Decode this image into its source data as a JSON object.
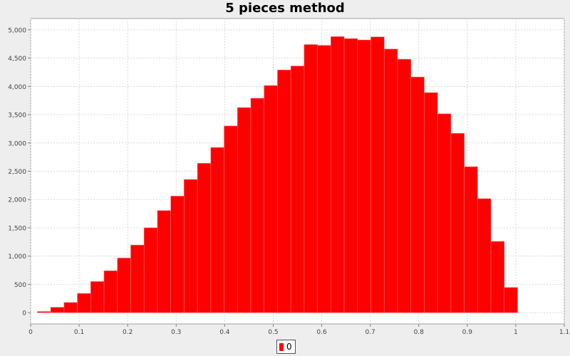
{
  "chart_data": {
    "type": "bar",
    "title": "5 pieces method",
    "xlabel": "",
    "ylabel": "",
    "xlim": [
      0,
      1.1
    ],
    "ylim": [
      -200,
      5200
    ],
    "x_ticks": [
      "0",
      "0.1",
      "0.2",
      "0.3",
      "0.4",
      "0.5",
      "0.6",
      "0.7",
      "0.8",
      "0.9",
      "1",
      "1.1"
    ],
    "x_tick_values": [
      0,
      0.1,
      0.2,
      0.3,
      0.4,
      0.5,
      0.6,
      0.7,
      0.8,
      0.9,
      1.0,
      1.1
    ],
    "y_ticks": [
      "0",
      "500",
      "1,000",
      "1,500",
      "2,000",
      "2,500",
      "3,000",
      "3,500",
      "4,000",
      "4,500",
      "5,000"
    ],
    "y_tick_values": [
      0,
      500,
      1000,
      1500,
      2000,
      2500,
      3000,
      3500,
      4000,
      4500,
      5000
    ],
    "grid": true,
    "legend_position": "bottom",
    "bar_color": "#ff0000",
    "series": [
      {
        "name": "0",
        "color": "#ff0000",
        "bins": [
          {
            "x0": 0.0138,
            "x1": 0.0413,
            "value": 20
          },
          {
            "x0": 0.0413,
            "x1": 0.0688,
            "value": 95
          },
          {
            "x0": 0.0688,
            "x1": 0.0963,
            "value": 180
          },
          {
            "x0": 0.0963,
            "x1": 0.1238,
            "value": 340
          },
          {
            "x0": 0.1238,
            "x1": 0.1513,
            "value": 550
          },
          {
            "x0": 0.1513,
            "x1": 0.1788,
            "value": 740
          },
          {
            "x0": 0.1788,
            "x1": 0.2063,
            "value": 965
          },
          {
            "x0": 0.2063,
            "x1": 0.2338,
            "value": 1195
          },
          {
            "x0": 0.2338,
            "x1": 0.2613,
            "value": 1500
          },
          {
            "x0": 0.2613,
            "x1": 0.2888,
            "value": 1805
          },
          {
            "x0": 0.2888,
            "x1": 0.3163,
            "value": 2060
          },
          {
            "x0": 0.3163,
            "x1": 0.3438,
            "value": 2355
          },
          {
            "x0": 0.3438,
            "x1": 0.3713,
            "value": 2640
          },
          {
            "x0": 0.3713,
            "x1": 0.3988,
            "value": 2920
          },
          {
            "x0": 0.3988,
            "x1": 0.4263,
            "value": 3300
          },
          {
            "x0": 0.4263,
            "x1": 0.4538,
            "value": 3625
          },
          {
            "x0": 0.4538,
            "x1": 0.4813,
            "value": 3790
          },
          {
            "x0": 0.4813,
            "x1": 0.5088,
            "value": 4015
          },
          {
            "x0": 0.5088,
            "x1": 0.5363,
            "value": 4290
          },
          {
            "x0": 0.5363,
            "x1": 0.5638,
            "value": 4360
          },
          {
            "x0": 0.5638,
            "x1": 0.5913,
            "value": 4740
          },
          {
            "x0": 0.5913,
            "x1": 0.6188,
            "value": 4725
          },
          {
            "x0": 0.6188,
            "x1": 0.6463,
            "value": 4880
          },
          {
            "x0": 0.6463,
            "x1": 0.6738,
            "value": 4845
          },
          {
            "x0": 0.6738,
            "x1": 0.7013,
            "value": 4820
          },
          {
            "x0": 0.7013,
            "x1": 0.7288,
            "value": 4875
          },
          {
            "x0": 0.7288,
            "x1": 0.7563,
            "value": 4660
          },
          {
            "x0": 0.7563,
            "x1": 0.7838,
            "value": 4480
          },
          {
            "x0": 0.7838,
            "x1": 0.8113,
            "value": 4165
          },
          {
            "x0": 0.8113,
            "x1": 0.8388,
            "value": 3890
          },
          {
            "x0": 0.8388,
            "x1": 0.8663,
            "value": 3515
          },
          {
            "x0": 0.8663,
            "x1": 0.8938,
            "value": 3170
          },
          {
            "x0": 0.8938,
            "x1": 0.9213,
            "value": 2580
          },
          {
            "x0": 0.9213,
            "x1": 0.9488,
            "value": 2015
          },
          {
            "x0": 0.9488,
            "x1": 0.9763,
            "value": 1260
          },
          {
            "x0": 0.9763,
            "x1": 1.0038,
            "value": 445
          }
        ]
      }
    ]
  }
}
